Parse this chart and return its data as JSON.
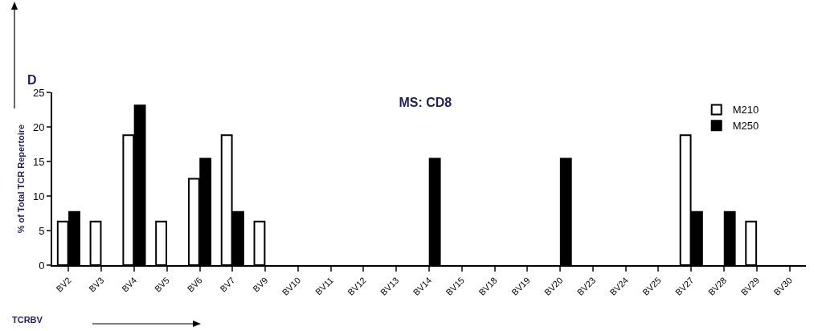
{
  "chart_data": {
    "type": "bar",
    "title": "MS: CD8",
    "xlabel": "TCRBV",
    "ylabel": "% of Total TCR Repertoire",
    "annotations": [
      "D"
    ],
    "categories": [
      "BV2",
      "BV3",
      "BV4",
      "BV5",
      "BV6",
      "BV7",
      "BV9",
      "BV10",
      "BV11",
      "BV12",
      "BV13",
      "BV14",
      "BV15",
      "BV18",
      "BV19",
      "BV20",
      "BV23",
      "BV24",
      "BV25",
      "BV27",
      "BV28",
      "BV29",
      "BV30"
    ],
    "series": [
      {
        "name": "M210",
        "color": "#ffffff",
        "values": [
          6.3,
          6.3,
          18.8,
          6.3,
          12.5,
          18.8,
          6.3,
          null,
          null,
          null,
          null,
          null,
          null,
          null,
          null,
          null,
          null,
          null,
          null,
          18.8,
          null,
          6.3,
          null
        ]
      },
      {
        "name": "M250",
        "color": "#000000",
        "values": [
          7.7,
          null,
          23.1,
          null,
          15.4,
          7.7,
          null,
          null,
          null,
          null,
          null,
          15.4,
          null,
          null,
          null,
          15.4,
          null,
          null,
          null,
          7.7,
          7.7,
          null,
          null
        ]
      }
    ],
    "ylim": [
      0,
      25
    ],
    "yticks": [
      0,
      5,
      10,
      15,
      20,
      25
    ],
    "grid": false,
    "legend": "top right"
  }
}
